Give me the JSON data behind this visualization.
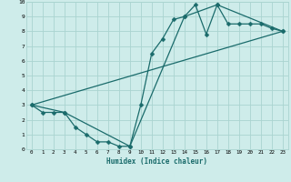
{
  "xlabel": "Humidex (Indice chaleur)",
  "xlim": [
    -0.5,
    23.5
  ],
  "ylim": [
    0,
    10
  ],
  "xticks": [
    0,
    1,
    2,
    3,
    4,
    5,
    6,
    7,
    8,
    9,
    10,
    11,
    12,
    13,
    14,
    15,
    16,
    17,
    18,
    19,
    20,
    21,
    22,
    23
  ],
  "yticks": [
    0,
    1,
    2,
    3,
    4,
    5,
    6,
    7,
    8,
    9,
    10
  ],
  "bg_color": "#ceecea",
  "grid_color": "#aad4d0",
  "line_color": "#1a6b6b",
  "series1_x": [
    0,
    1,
    2,
    3,
    4,
    5,
    6,
    7,
    8,
    9,
    10,
    11,
    12,
    13,
    14,
    15,
    16,
    17,
    18,
    19,
    20,
    21,
    22,
    23
  ],
  "series1_y": [
    3.0,
    2.5,
    2.5,
    2.5,
    1.5,
    1.0,
    0.5,
    0.5,
    0.2,
    0.2,
    3.0,
    6.5,
    7.5,
    8.8,
    9.0,
    9.8,
    7.8,
    9.8,
    8.5,
    8.5,
    8.5,
    8.5,
    8.2,
    8.0
  ],
  "series2_x": [
    0,
    3,
    9,
    14,
    17,
    23
  ],
  "series2_y": [
    3.0,
    2.5,
    0.2,
    9.0,
    9.8,
    8.0
  ],
  "series3_x": [
    0,
    23
  ],
  "series3_y": [
    3.0,
    8.0
  ],
  "markersize": 2.5,
  "linewidth": 0.9
}
